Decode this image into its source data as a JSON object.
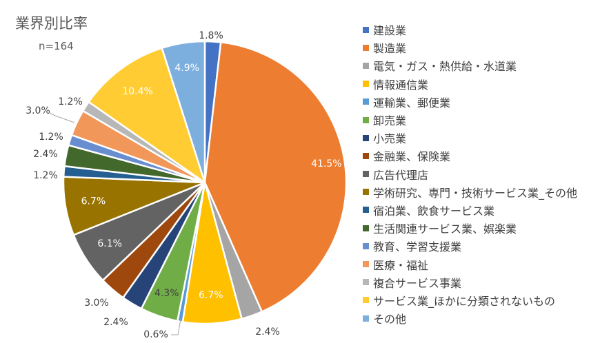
{
  "chart_data": {
    "type": "pie",
    "title": "業界別比率",
    "subtitle": "n=164",
    "start_angle_deg": 0,
    "direction": "clockwise",
    "legend_position": "right",
    "slices": [
      {
        "name": "建設業",
        "value": 1.8,
        "label": "1.8%",
        "color": "#4472C4"
      },
      {
        "name": "製造業",
        "value": 41.5,
        "label": "41.5%",
        "color": "#ED7D31"
      },
      {
        "name": "電気・ガス・熱供給・水道業",
        "value": 2.4,
        "label": "2.4%",
        "color": "#A5A5A5"
      },
      {
        "name": "情報通信業",
        "value": 6.7,
        "label": "6.7%",
        "color": "#FFC000"
      },
      {
        "name": "運輸業、郵便業",
        "value": 0.6,
        "label": "0.6%",
        "color": "#5B9BD5"
      },
      {
        "name": "卸売業",
        "value": 4.3,
        "label": "4.3%",
        "color": "#70AD47"
      },
      {
        "name": "小売業",
        "value": 2.4,
        "label": "2.4%",
        "color": "#264478"
      },
      {
        "name": "金融業、保険業",
        "value": 3.0,
        "label": "3.0%",
        "color": "#9E480E"
      },
      {
        "name": "広告代理店",
        "value": 6.1,
        "label": "6.1%",
        "color": "#636363"
      },
      {
        "name": "学術研究、専門・技術サービス業_その他",
        "value": 6.7,
        "label": "6.7%",
        "color": "#997300"
      },
      {
        "name": "宿泊業、飲食サービス業",
        "value": 1.2,
        "label": "1.2%",
        "color": "#255E91"
      },
      {
        "name": "生活関連サービス業、娯楽業",
        "value": 2.4,
        "label": "2.4%",
        "color": "#43682B"
      },
      {
        "name": "教育、学習支援業",
        "value": 1.2,
        "label": "1.2%",
        "color": "#698ED0"
      },
      {
        "name": "医療・福祉",
        "value": 3.0,
        "label": "3.0%",
        "color": "#F1975A"
      },
      {
        "name": "複合サービス事業",
        "value": 1.2,
        "label": "1.2%",
        "color": "#B7B7B7"
      },
      {
        "name": "サービス業_ほかに分類されないもの",
        "value": 10.4,
        "label": "10.4%",
        "color": "#FFCD33"
      },
      {
        "name": "その他",
        "value": 4.9,
        "label": "4.9%",
        "color": "#7CAFDD"
      }
    ]
  }
}
